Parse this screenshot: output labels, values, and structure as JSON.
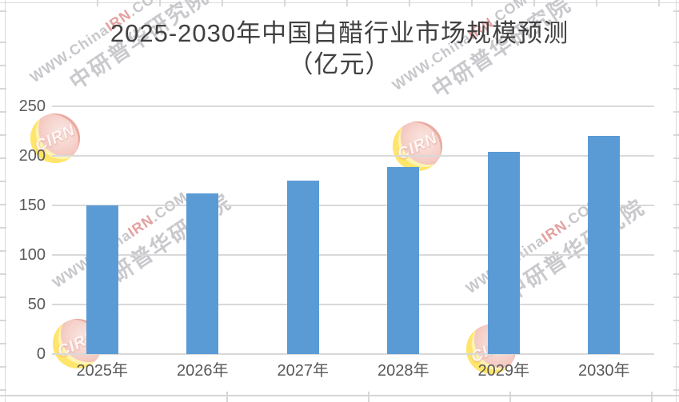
{
  "title": {
    "line1": "2025-2030年中国白醋行业市场规模预测",
    "line2": "（亿元）"
  },
  "chart_data": {
    "type": "bar",
    "title": "2025-2030年中国白醋行业市场规模预测（亿元）",
    "unit": "亿元",
    "categories": [
      "2025年",
      "2026年",
      "2027年",
      "2028年",
      "2029年",
      "2030年"
    ],
    "values": [
      150,
      162,
      175,
      189,
      204,
      220
    ],
    "xlabel": "",
    "ylabel": "",
    "ylim": [
      0,
      250
    ],
    "yticks": [
      0,
      50,
      100,
      150,
      200,
      250
    ],
    "grid": "horizontal",
    "legend": "none",
    "bar_color": "#5B9BD5"
  },
  "watermark": {
    "logo_text": "CIRN",
    "site_prefix": "WWW.China",
    "site_highlight": "IRN",
    "site_suffix": ".COM",
    "org_name": "中研普华研究院"
  },
  "colors": {
    "bar": "#5B9BD5",
    "gridline": "#D9D9D9",
    "axis_text": "#595959",
    "title_text": "#404040",
    "watermark_gray": "#C8C8CC",
    "watermark_red": "#E59F9F"
  }
}
